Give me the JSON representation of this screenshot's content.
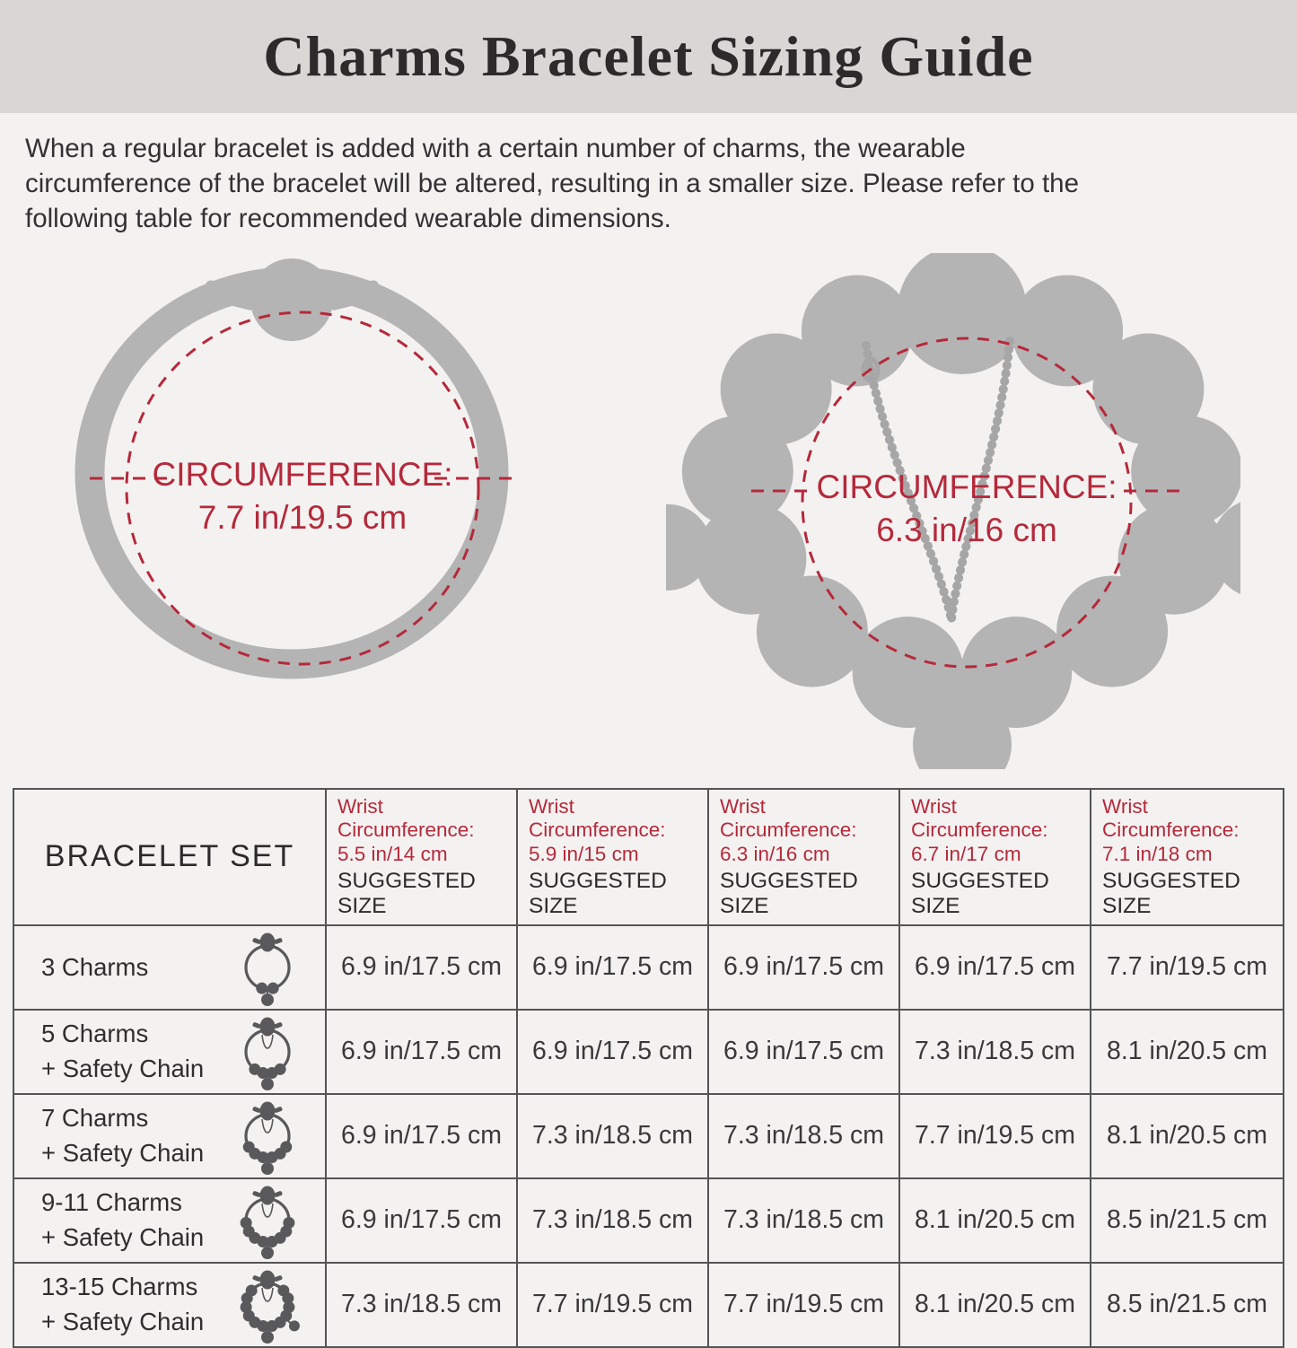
{
  "header": {
    "title": "Charms Bracelet Sizing Guide"
  },
  "intro_lines": [
    "When a regular bracelet is added with a certain number of charms, the wearable",
    "circumference of the bracelet will be altered, resulting in a smaller size. Please refer to the",
    "following table for recommended wearable dimensions."
  ],
  "diagrams": {
    "plain": {
      "label_line1": "CIRCUMFERENCE:",
      "label_line2": "7.7 in/19.5 cm"
    },
    "charms": {
      "label_line1": "CIRCUMFERENCE:",
      "label_line2": "6.3 in/16 cm"
    }
  },
  "table": {
    "first_header": "BRACELET SET",
    "columns": [
      {
        "wrist_line1": "Wrist Circumference:",
        "wrist_line2": "5.5 in/14 cm",
        "suggested": "SUGGESTED SIZE"
      },
      {
        "wrist_line1": "Wrist Circumference:",
        "wrist_line2": "5.9 in/15 cm",
        "suggested": "SUGGESTED SIZE"
      },
      {
        "wrist_line1": "Wrist Circumference:",
        "wrist_line2": "6.3 in/16 cm",
        "suggested": "SUGGESTED SIZE"
      },
      {
        "wrist_line1": "Wrist Circumference:",
        "wrist_line2": "6.7 in/17 cm",
        "suggested": "SUGGESTED SIZE"
      },
      {
        "wrist_line1": "Wrist Circumference:",
        "wrist_line2": "7.1 in/18 cm",
        "suggested": "SUGGESTED SIZE"
      }
    ],
    "rows": [
      {
        "label1": "3 Charms",
        "label2": "",
        "beads": 3,
        "chain": false,
        "values": [
          "6.9 in/17.5 cm",
          "6.9 in/17.5 cm",
          "6.9 in/17.5 cm",
          "6.9 in/17.5 cm",
          "7.7 in/19.5 cm"
        ]
      },
      {
        "label1": "5 Charms",
        "label2": "+ Safety Chain",
        "beads": 5,
        "chain": true,
        "values": [
          "6.9 in/17.5 cm",
          "6.9 in/17.5 cm",
          "6.9 in/17.5 cm",
          "7.3 in/18.5 cm",
          "8.1 in/20.5 cm"
        ]
      },
      {
        "label1": "7 Charms",
        "label2": "+ Safety Chain",
        "beads": 7,
        "chain": true,
        "values": [
          "6.9 in/17.5 cm",
          "7.3 in/18.5 cm",
          "7.3 in/18.5 cm",
          "7.7 in/19.5 cm",
          "8.1 in/20.5 cm"
        ]
      },
      {
        "label1": "9-11 Charms",
        "label2": "+ Safety Chain",
        "beads": 9,
        "chain": true,
        "values": [
          "6.9 in/17.5 cm",
          "7.3 in/18.5 cm",
          "7.3 in/18.5 cm",
          "8.1 in/20.5 cm",
          "8.5 in/21.5 cm"
        ]
      },
      {
        "label1": "13-15 Charms",
        "label2": "+ Safety Chain",
        "beads": 13,
        "chain": true,
        "values": [
          "7.3 in/18.5 cm",
          "7.7 in/19.5 cm",
          "7.7 in/19.5 cm",
          "8.1 in/20.5 cm",
          "8.5 in/21.5 cm"
        ]
      }
    ]
  },
  "colors": {
    "accent_red": "#b5293b",
    "diagram_gray": "#b5b4b4",
    "icon_gray": "#59595b",
    "band_gray": "#d8d7d6"
  }
}
